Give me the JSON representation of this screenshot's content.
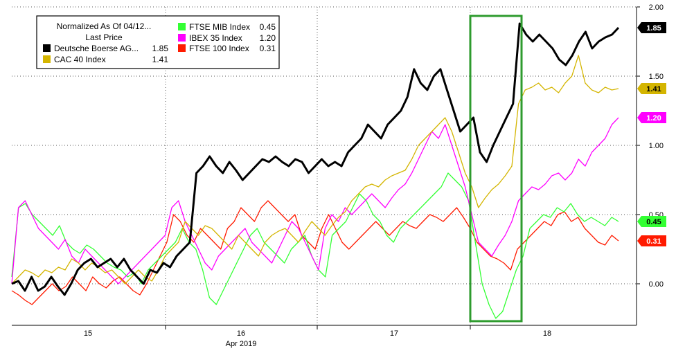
{
  "chart_data": {
    "type": "line",
    "legend": {
      "title": "Normalized As Of 04/12...",
      "subtitle": "Last Price",
      "placement": "top-left"
    },
    "x_axis": {
      "tick_labels": [
        "15",
        "16",
        "17",
        "18"
      ],
      "month_label": "Apr 2019"
    },
    "y_axis": {
      "ylim": [
        -0.3,
        2.0
      ],
      "ticks": [
        0.0,
        0.5,
        1.0,
        1.5,
        2.0
      ],
      "tick_labels": [
        "0.00",
        "0.50",
        "1.00",
        "1.50",
        "2.00"
      ],
      "side": "right"
    },
    "grid": true,
    "highlight_box_color": "#2e9b2e",
    "series": [
      {
        "name": "Deutsche Boerse AG...",
        "last": "1.85",
        "color": "#000000",
        "values": [
          0.0,
          0.02,
          -0.05,
          0.05,
          -0.05,
          -0.02,
          0.05,
          -0.02,
          -0.08,
          0.0,
          0.1,
          0.15,
          0.18,
          0.12,
          0.15,
          0.18,
          0.12,
          0.18,
          0.1,
          0.05,
          0.0,
          0.1,
          0.08,
          0.15,
          0.12,
          0.2,
          0.25,
          0.3,
          0.8,
          0.85,
          0.92,
          0.85,
          0.8,
          0.88,
          0.82,
          0.75,
          0.8,
          0.85,
          0.9,
          0.88,
          0.92,
          0.88,
          0.85,
          0.9,
          0.88,
          0.8,
          0.85,
          0.9,
          0.85,
          0.88,
          0.85,
          0.95,
          1.0,
          1.05,
          1.15,
          1.1,
          1.05,
          1.15,
          1.2,
          1.25,
          1.35,
          1.55,
          1.45,
          1.4,
          1.5,
          1.55,
          1.4,
          1.25,
          1.1,
          1.15,
          1.2,
          0.95,
          0.88,
          1.0,
          1.1,
          1.2,
          1.3,
          1.88,
          1.8,
          1.75,
          1.8,
          1.75,
          1.7,
          1.62,
          1.58,
          1.65,
          1.75,
          1.82,
          1.7,
          1.75,
          1.78,
          1.8,
          1.85
        ]
      },
      {
        "name": "CAC 40 Index",
        "last": "1.41",
        "color": "#d4b500",
        "values": [
          0.0,
          0.05,
          0.1,
          0.08,
          0.05,
          0.1,
          0.08,
          0.12,
          0.1,
          0.18,
          0.15,
          0.1,
          0.15,
          0.12,
          0.08,
          0.1,
          0.05,
          0.0,
          0.05,
          0.1,
          0.05,
          0.02,
          0.1,
          0.2,
          0.25,
          0.3,
          0.45,
          0.4,
          0.35,
          0.42,
          0.4,
          0.35,
          0.3,
          0.25,
          0.35,
          0.3,
          0.25,
          0.2,
          0.3,
          0.35,
          0.38,
          0.4,
          0.35,
          0.3,
          0.38,
          0.45,
          0.4,
          0.35,
          0.42,
          0.48,
          0.52,
          0.6,
          0.65,
          0.7,
          0.72,
          0.7,
          0.75,
          0.78,
          0.8,
          0.82,
          0.9,
          1.0,
          1.05,
          1.1,
          1.15,
          1.2,
          1.1,
          0.95,
          0.8,
          0.7,
          0.55,
          0.62,
          0.68,
          0.72,
          0.78,
          0.85,
          1.3,
          1.4,
          1.42,
          1.45,
          1.4,
          1.42,
          1.38,
          1.45,
          1.5,
          1.65,
          1.45,
          1.4,
          1.38,
          1.42,
          1.4,
          1.41
        ]
      },
      {
        "name": "FTSE MIB Index",
        "last": "0.45",
        "color": "#33ff33",
        "values": [
          0.05,
          0.55,
          0.58,
          0.5,
          0.45,
          0.4,
          0.35,
          0.42,
          0.3,
          0.25,
          0.22,
          0.28,
          0.25,
          0.2,
          0.15,
          0.12,
          0.1,
          0.05,
          0.08,
          0.0,
          0.1,
          0.15,
          0.2,
          0.25,
          0.3,
          0.4,
          0.3,
          0.25,
          0.1,
          -0.1,
          -0.15,
          -0.05,
          0.05,
          0.15,
          0.25,
          0.35,
          0.4,
          0.3,
          0.25,
          0.2,
          0.15,
          0.25,
          0.3,
          0.35,
          0.2,
          0.1,
          0.05,
          0.35,
          0.4,
          0.45,
          0.55,
          0.65,
          0.6,
          0.5,
          0.45,
          0.35,
          0.3,
          0.4,
          0.45,
          0.5,
          0.55,
          0.6,
          0.65,
          0.7,
          0.8,
          0.75,
          0.7,
          0.6,
          0.3,
          0.0,
          -0.15,
          -0.25,
          -0.2,
          -0.05,
          0.1,
          0.2,
          0.4,
          0.45,
          0.5,
          0.48,
          0.55,
          0.52,
          0.58,
          0.5,
          0.45,
          0.48,
          0.45,
          0.42,
          0.48,
          0.45
        ]
      },
      {
        "name": "IBEX 35 Index",
        "last": "1.20",
        "color": "#ff00ff",
        "values": [
          0.0,
          0.55,
          0.6,
          0.5,
          0.4,
          0.35,
          0.3,
          0.25,
          0.32,
          0.2,
          0.15,
          0.25,
          0.2,
          0.15,
          0.1,
          0.05,
          0.0,
          0.05,
          0.1,
          0.15,
          0.2,
          0.25,
          0.3,
          0.35,
          0.55,
          0.6,
          0.45,
          0.35,
          0.25,
          0.15,
          0.1,
          0.2,
          0.25,
          0.3,
          0.35,
          0.4,
          0.3,
          0.25,
          0.2,
          0.15,
          0.25,
          0.35,
          0.45,
          0.4,
          0.3,
          0.2,
          0.1,
          0.4,
          0.5,
          0.45,
          0.55,
          0.5,
          0.55,
          0.6,
          0.65,
          0.6,
          0.55,
          0.62,
          0.68,
          0.72,
          0.8,
          0.9,
          1.0,
          1.1,
          1.05,
          1.15,
          1.0,
          0.85,
          0.7,
          0.5,
          0.3,
          0.25,
          0.2,
          0.28,
          0.35,
          0.45,
          0.6,
          0.65,
          0.7,
          0.68,
          0.72,
          0.78,
          0.8,
          0.75,
          0.8,
          0.9,
          0.85,
          0.95,
          1.0,
          1.05,
          1.15,
          1.2
        ]
      },
      {
        "name": "FTSE 100 Index",
        "last": "0.31",
        "color": "#ff1a00",
        "values": [
          -0.05,
          -0.08,
          -0.12,
          -0.15,
          -0.1,
          -0.05,
          0.0,
          -0.05,
          -0.02,
          0.05,
          0.0,
          -0.05,
          0.05,
          0.0,
          -0.03,
          0.02,
          0.05,
          0.0,
          -0.05,
          -0.08,
          0.0,
          0.1,
          0.2,
          0.3,
          0.5,
          0.45,
          0.35,
          0.3,
          0.4,
          0.35,
          0.3,
          0.25,
          0.4,
          0.45,
          0.55,
          0.5,
          0.45,
          0.55,
          0.6,
          0.55,
          0.5,
          0.45,
          0.5,
          0.35,
          0.3,
          0.25,
          0.4,
          0.5,
          0.4,
          0.3,
          0.25,
          0.3,
          0.35,
          0.4,
          0.45,
          0.4,
          0.35,
          0.4,
          0.45,
          0.42,
          0.4,
          0.45,
          0.5,
          0.48,
          0.45,
          0.5,
          0.55,
          0.48,
          0.4,
          0.3,
          0.25,
          0.2,
          0.18,
          0.15,
          0.1,
          0.25,
          0.3,
          0.35,
          0.4,
          0.45,
          0.42,
          0.5,
          0.52,
          0.45,
          0.48,
          0.4,
          0.35,
          0.3,
          0.28,
          0.35,
          0.31
        ]
      }
    ]
  }
}
